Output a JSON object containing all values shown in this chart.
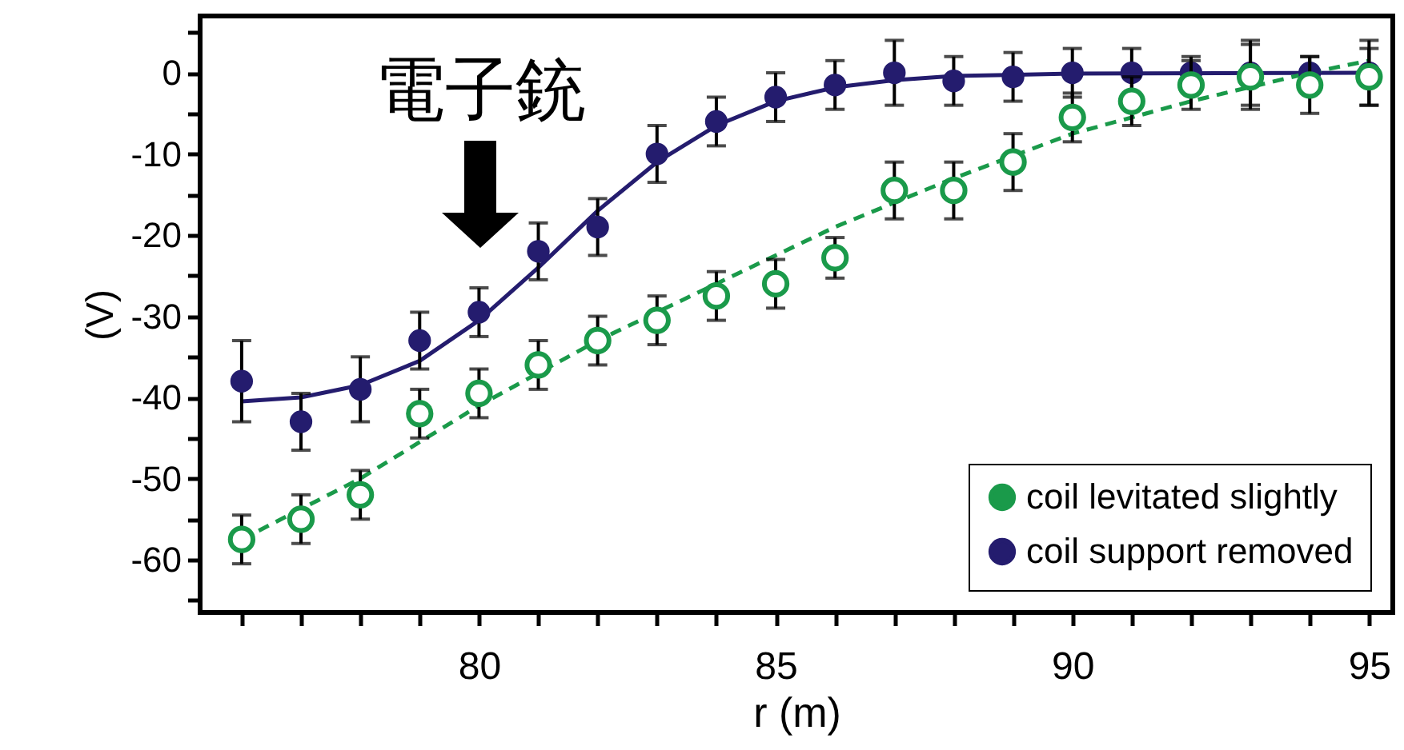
{
  "chart_data": {
    "type": "scatter",
    "xlabel": "r (m)",
    "ylabel": "(V)",
    "xlim": [
      75.3,
      95.4
    ],
    "ylim": [
      -66.5,
      7
    ],
    "xticks": [
      {
        "value": 76,
        "label": null
      },
      {
        "value": 77,
        "label": null
      },
      {
        "value": 78,
        "label": null
      },
      {
        "value": 79,
        "label": null
      },
      80,
      {
        "value": 81,
        "label": null
      },
      {
        "value": 82,
        "label": null
      },
      {
        "value": 83,
        "label": null
      },
      {
        "value": 84,
        "label": null
      },
      85,
      {
        "value": 86,
        "label": null
      },
      {
        "value": 87,
        "label": null
      },
      {
        "value": 88,
        "label": null
      },
      {
        "value": 89,
        "label": null
      },
      90,
      {
        "value": 91,
        "label": null
      },
      {
        "value": 92,
        "label": null
      },
      {
        "value": 93,
        "label": null
      },
      {
        "value": 94,
        "label": null
      },
      95
    ],
    "yticks": [
      {
        "value": -65,
        "label": null
      },
      -60,
      {
        "value": -55,
        "label": null
      },
      -50,
      {
        "value": -45,
        "label": null
      },
      -40,
      {
        "value": -35,
        "label": null
      },
      -30,
      {
        "value": -25,
        "label": null
      },
      -20,
      {
        "value": -15,
        "label": null
      },
      -10,
      {
        "value": -5,
        "label": null
      },
      0,
      {
        "value": 5,
        "label": null
      }
    ],
    "grid": false,
    "legend": "bottom right",
    "annotations": [
      "電子銃"
    ],
    "series": [
      {
        "name": "coil levitated slightly",
        "marker": "circle",
        "line_style": "dashed",
        "color": "#1a9a4a",
        "x": [
          76,
          77,
          78,
          79,
          80,
          81,
          82,
          83,
          84,
          85,
          86,
          87,
          88,
          89,
          90,
          91,
          92,
          93,
          94,
          95
        ],
        "values": [
          -57.5,
          -55,
          -52,
          -42,
          -39.5,
          -36,
          -33,
          -30.5,
          -27.5,
          -26,
          -22.8,
          -14.5,
          -14.5,
          -11,
          -5.5,
          -3.5,
          -1.5,
          -0.5,
          -1.5,
          -0.5
        ],
        "errors": [
          3,
          3,
          3,
          3,
          3,
          3,
          3,
          3,
          3,
          3,
          2.5,
          3.5,
          3.5,
          3.5,
          3,
          3,
          3,
          4,
          3.5,
          3.5
        ]
      },
      {
        "name": "coil support removed",
        "marker": "circle",
        "color": "#241c6e",
        "x": [
          76,
          77,
          78,
          79,
          80,
          81,
          82,
          83,
          84,
          85,
          86,
          87,
          88,
          89,
          90,
          91,
          92,
          93,
          94,
          95
        ],
        "values": [
          -38,
          -43,
          -39,
          -33,
          -29.5,
          -22,
          -19,
          -10,
          -6,
          -3,
          -1.5,
          0,
          -1,
          -0.5,
          0,
          0,
          0,
          0,
          0,
          0
        ],
        "errors": [
          5,
          3.5,
          4,
          3.5,
          3,
          3.5,
          3.5,
          3.5,
          3,
          3,
          3,
          4,
          3,
          3,
          3,
          3,
          2,
          4,
          2,
          4
        ]
      },
      {
        "type": "line",
        "line_style": "dashed",
        "color": "#1a9a4a",
        "x": [
          76,
          78,
          80,
          82,
          84,
          86,
          88,
          90,
          92,
          94,
          95
        ],
        "values": [
          -57.5,
          -50,
          -41,
          -33,
          -26,
          -19,
          -13,
          -7.5,
          -3.5,
          0,
          1.5
        ]
      },
      {
        "type": "line",
        "line_style": "solid",
        "color": "#241c6e",
        "x": [
          76,
          77,
          78,
          79,
          80,
          81,
          82,
          83,
          84,
          85,
          86,
          87,
          88,
          90,
          95
        ],
        "values": [
          -40.5,
          -40,
          -38.5,
          -35.5,
          -30.5,
          -24,
          -17,
          -11,
          -6.5,
          -3.5,
          -1.8,
          -0.9,
          -0.4,
          -0.1,
          0
        ]
      }
    ]
  }
}
